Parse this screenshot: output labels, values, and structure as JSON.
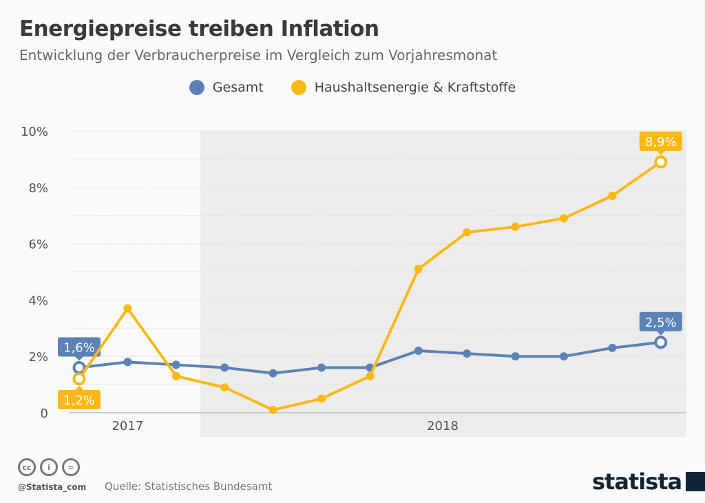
{
  "header": {
    "title": "Energiepreise treiben Inflation",
    "subtitle": "Entwicklung der Verbraucherpreise im Vergleich zum Vorjahresmonat"
  },
  "footer": {
    "handle": "@Statista_com",
    "source": "Quelle: Statistisches Bundesamt",
    "logo": "statista",
    "license_icons": [
      "cc-icon",
      "by-icon",
      "nd-icon"
    ]
  },
  "chart_data": {
    "type": "line",
    "title": "Energiepreise treiben Inflation",
    "subtitle": "Entwicklung der Verbraucherpreise im Vergleich zum Vorjahresmonat",
    "year_labels": [
      "2017",
      "2018"
    ],
    "x_points_per_year": [
      3,
      10
    ],
    "ylim": [
      0,
      10
    ],
    "yticks": [
      {
        "v": 0,
        "label": "0"
      },
      {
        "v": 2,
        "label": "2%"
      },
      {
        "v": 4,
        "label": "4%"
      },
      {
        "v": 6,
        "label": "6%"
      },
      {
        "v": 8,
        "label": "8%"
      },
      {
        "v": 10,
        "label": "10%"
      }
    ],
    "grid": true,
    "legend_placement": "top",
    "shaded_period": "2018",
    "series": [
      {
        "name": "Gesamt",
        "color": "#5b82b6",
        "values": [
          1.6,
          1.8,
          1.7,
          1.6,
          1.4,
          1.6,
          1.6,
          2.2,
          2.1,
          2.0,
          2.0,
          2.3,
          2.5
        ],
        "labels": [
          {
            "index": 0,
            "text": "1,6%",
            "pos": "above"
          },
          {
            "index": 12,
            "text": "2,5%",
            "pos": "above"
          }
        ]
      },
      {
        "name": "Haushaltsenergie & Kraftstoffe",
        "color": "#fdb813",
        "values": [
          1.2,
          3.7,
          1.3,
          0.9,
          0.1,
          0.5,
          1.3,
          5.1,
          6.4,
          6.6,
          6.9,
          7.7,
          8.9
        ],
        "labels": [
          {
            "index": 0,
            "text": "1,2%",
            "pos": "below"
          },
          {
            "index": 12,
            "text": "8,9%",
            "pos": "above"
          }
        ]
      }
    ]
  }
}
